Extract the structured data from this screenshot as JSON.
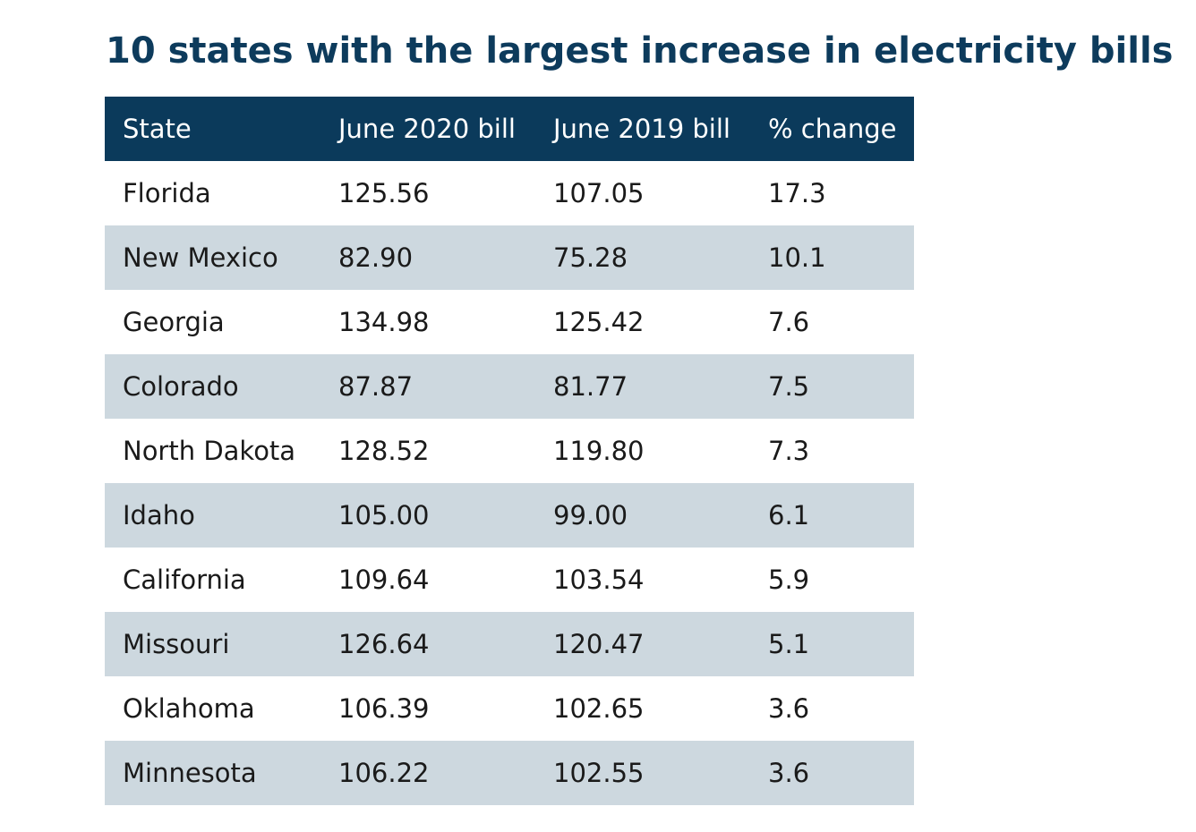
{
  "chart_data": {
    "type": "table",
    "title": "10 states with the largest increase in electricity bills",
    "columns": [
      "State",
      "June 2020 bill",
      "June 2019 bill",
      "% change"
    ],
    "rows": [
      [
        "Florida",
        "125.56",
        "107.05",
        "17.3"
      ],
      [
        "New Mexico",
        "82.90",
        "75.28",
        "10.1"
      ],
      [
        "Georgia",
        "134.98",
        "125.42",
        "7.6"
      ],
      [
        "Colorado",
        "87.87",
        "81.77",
        "7.5"
      ],
      [
        "North Dakota",
        "128.52",
        "119.80",
        "7.3"
      ],
      [
        "Idaho",
        "105.00",
        "99.00",
        "6.1"
      ],
      [
        "California",
        "109.64",
        "103.54",
        "5.9"
      ],
      [
        "Missouri",
        "126.64",
        "120.47",
        "5.1"
      ],
      [
        "Oklahoma",
        "106.39",
        "102.65",
        "3.6"
      ],
      [
        "Minnesota",
        "106.22",
        "102.55",
        "3.6"
      ]
    ],
    "colors": {
      "title": "#0d3b5c",
      "header_bg": "#0b3a5b",
      "header_text": "#ffffff",
      "row_alt_bg": "#cdd8df",
      "row_bg": "#ffffff"
    }
  }
}
